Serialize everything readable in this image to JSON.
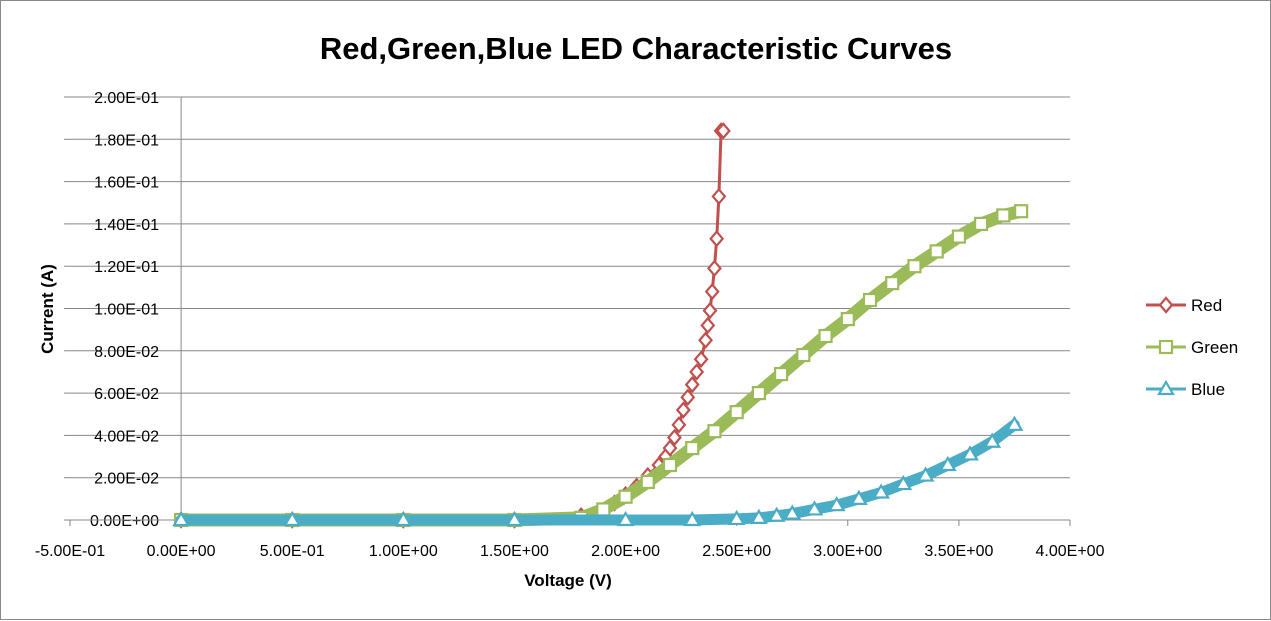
{
  "chart_data": {
    "type": "scatter",
    "title": "Red,Green,Blue LED Characteristic Curves",
    "xlabel": "Voltage (V)",
    "ylabel": "Current (A)",
    "xlim": [
      -0.5,
      4.0
    ],
    "ylim": [
      0,
      0.2
    ],
    "x_ticks": [
      -0.5,
      0.0,
      0.5,
      1.0,
      1.5,
      2.0,
      2.5,
      3.0,
      3.5,
      4.0
    ],
    "x_tick_labels": [
      "-5.00E-01",
      "0.00E+00",
      "5.00E-01",
      "1.00E+00",
      "1.50E+00",
      "2.00E+00",
      "2.50E+00",
      "3.00E+00",
      "3.50E+00",
      "4.00E+00"
    ],
    "y_ticks": [
      0.0,
      0.02,
      0.04,
      0.06,
      0.08,
      0.1,
      0.12,
      0.14,
      0.16,
      0.18,
      0.2
    ],
    "y_tick_labels": [
      "0.00E+00",
      "2.00E-02",
      "4.00E-02",
      "6.00E-02",
      "8.00E-02",
      "1.00E-01",
      "1.20E-01",
      "1.40E-01",
      "1.60E-01",
      "1.80E-01",
      "2.00E-01"
    ],
    "grid": "horizontal",
    "legend_position": "right",
    "series": [
      {
        "name": "Red",
        "color": "#C0504D",
        "marker": "diamond",
        "x": [
          0.0,
          0.5,
          1.0,
          1.5,
          1.8,
          1.88,
          1.95,
          2.0,
          2.05,
          2.1,
          2.15,
          2.18,
          2.2,
          2.22,
          2.24,
          2.26,
          2.28,
          2.3,
          2.32,
          2.34,
          2.36,
          2.37,
          2.38,
          2.39,
          2.4,
          2.41,
          2.42,
          2.43,
          2.44
        ],
        "y": [
          0.0,
          0.0,
          0.0,
          0.0,
          0.002,
          0.004,
          0.008,
          0.012,
          0.016,
          0.021,
          0.026,
          0.03,
          0.034,
          0.039,
          0.045,
          0.052,
          0.058,
          0.064,
          0.07,
          0.076,
          0.085,
          0.092,
          0.099,
          0.108,
          0.119,
          0.133,
          0.153,
          0.184,
          0.184
        ]
      },
      {
        "name": "Green",
        "color": "#9BBB59",
        "marker": "square",
        "x": [
          0.0,
          0.5,
          1.0,
          1.5,
          1.8,
          1.9,
          2.0,
          2.1,
          2.2,
          2.3,
          2.4,
          2.5,
          2.6,
          2.7,
          2.8,
          2.9,
          3.0,
          3.1,
          3.2,
          3.3,
          3.4,
          3.5,
          3.6,
          3.7,
          3.78
        ],
        "y": [
          0.0,
          0.0,
          0.0,
          0.0,
          0.001,
          0.005,
          0.011,
          0.018,
          0.026,
          0.034,
          0.042,
          0.051,
          0.06,
          0.069,
          0.078,
          0.087,
          0.095,
          0.104,
          0.112,
          0.12,
          0.127,
          0.134,
          0.14,
          0.144,
          0.146
        ]
      },
      {
        "name": "Blue",
        "color": "#4BACC6",
        "marker": "triangle",
        "x": [
          0.0,
          0.5,
          1.0,
          1.5,
          2.0,
          2.3,
          2.5,
          2.6,
          2.68,
          2.75,
          2.85,
          2.95,
          3.05,
          3.15,
          3.25,
          3.35,
          3.45,
          3.55,
          3.65,
          3.75
        ],
        "y": [
          0.0,
          0.0,
          0.0,
          0.0,
          0.0,
          0.0,
          0.0005,
          0.001,
          0.002,
          0.003,
          0.005,
          0.007,
          0.01,
          0.013,
          0.017,
          0.021,
          0.026,
          0.031,
          0.037,
          0.045
        ]
      }
    ]
  }
}
